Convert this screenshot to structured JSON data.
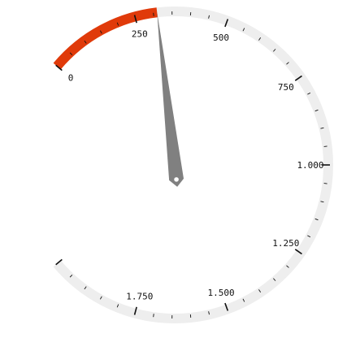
{
  "gauge": {
    "min": 0,
    "max": 2000,
    "value": 310,
    "major_tick_step": 250,
    "minor_tick_step": 50,
    "labels": [
      {
        "value": 0,
        "text": "0"
      },
      {
        "value": 250,
        "text": "250"
      },
      {
        "value": 500,
        "text": "500"
      },
      {
        "value": 750,
        "text": "750"
      },
      {
        "value": 1000,
        "text": "1.000"
      },
      {
        "value": 1250,
        "text": "1.250"
      },
      {
        "value": 1500,
        "text": "1.500"
      },
      {
        "value": 1750,
        "text": "1.750"
      }
    ],
    "colors": {
      "track": "#eeeeee",
      "progress": "#e03a0a",
      "needle": "#808080",
      "tick": "#111111",
      "pivot_dot": "#ffffff"
    }
  }
}
